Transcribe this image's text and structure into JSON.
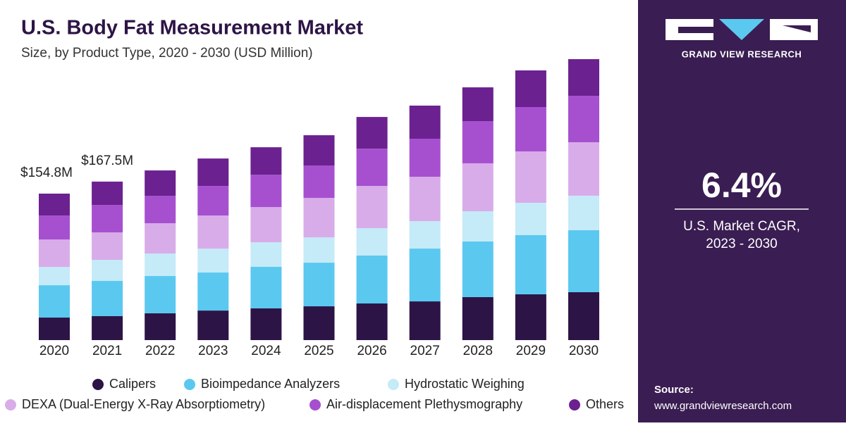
{
  "chart_data": {
    "type": "stacked-bar",
    "title": "U.S. Body Fat Measurement Market",
    "subtitle": "Size, by Product Type, 2020 - 2030 (USD Million)",
    "categories": [
      "2020",
      "2021",
      "2022",
      "2023",
      "2024",
      "2025",
      "2026",
      "2027",
      "2028",
      "2029",
      "2030"
    ],
    "series": [
      {
        "name": "Calipers",
        "color": "#2d1446",
        "values": [
          23.8,
          25.3,
          28.3,
          31.2,
          33.5,
          35.7,
          38.7,
          40.9,
          45.4,
          48.4,
          50.6
        ]
      },
      {
        "name": "Bioimpedance Analyzers",
        "color": "#5bc8f0",
        "values": [
          34.2,
          37.2,
          39.4,
          40.2,
          43.9,
          46.1,
          50.6,
          55.8,
          58.8,
          62.5,
          65.5
        ]
      },
      {
        "name": "Hydrostatic Weighing",
        "color": "#c5eaf8",
        "values": [
          19.3,
          22.3,
          23.8,
          25.3,
          26.0,
          26.8,
          29.0,
          29.0,
          32.0,
          34.2,
          36.5
        ]
      },
      {
        "name": "DEXA (Dual-Energy X-Ray Absorptiometry)",
        "color": "#d8ace9",
        "values": [
          29.0,
          29.0,
          32.0,
          35.0,
          37.2,
          41.7,
          44.6,
          46.9,
          50.6,
          54.3,
          56.5
        ]
      },
      {
        "name": "Air-displacement Plethysmography",
        "color": "#a650d0",
        "values": [
          25.3,
          29.0,
          29.0,
          31.2,
          34.2,
          34.2,
          39.4,
          40.2,
          44.6,
          46.9,
          49.1
        ]
      },
      {
        "name": "Others",
        "color": "#6b2190",
        "values": [
          23.2,
          24.7,
          26.8,
          29.0,
          29.0,
          32.0,
          33.5,
          35.0,
          35.7,
          38.7,
          38.7
        ]
      }
    ],
    "annotations": [
      {
        "text": "$154.8M",
        "value": 154.8,
        "category": "2020"
      },
      {
        "text": "$167.5M",
        "value": 167.5,
        "category": "2021"
      }
    ]
  },
  "sidebar": {
    "brand": "GRAND VIEW RESEARCH",
    "cagr": "6.4%",
    "cagr_label_line1": "U.S. Market CAGR,",
    "cagr_label_line2": "2023 - 2030",
    "source_label": "Source:",
    "source_url": "www.grandviewresearch.com"
  }
}
